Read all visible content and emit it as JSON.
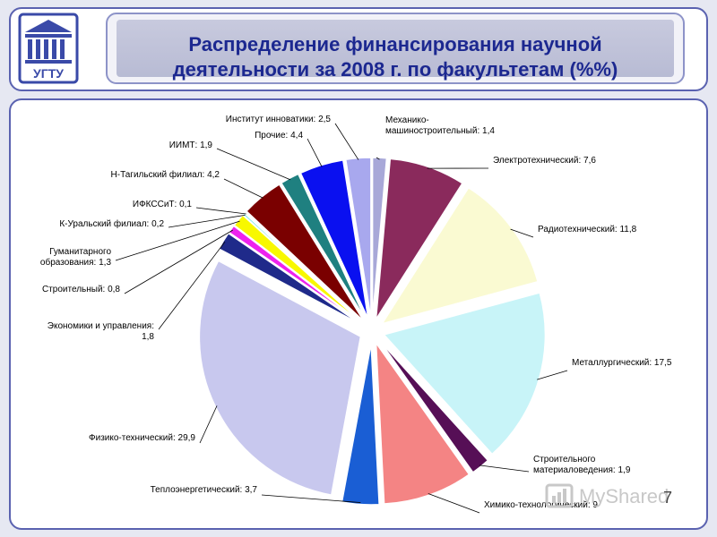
{
  "header": {
    "title_line1": "Распределение финансирования научной",
    "title_line2": "деятельности за 2008 г. по факультетам (%%)",
    "logo_text": "УГТУ"
  },
  "chart_data": {
    "type": "pie",
    "title": "Распределение финансирования научной деятельности за 2008 г. по факультетам (%%)",
    "slices": [
      {
        "label": "Механико-машиностроительный: 1,4",
        "value": 1.4,
        "color": "#a8a8d8"
      },
      {
        "label": "Электротехнический: 7,6",
        "value": 7.6,
        "color": "#8a2a5c"
      },
      {
        "label": "Радиотехнический: 11,8",
        "value": 11.8,
        "color": "#fafad2"
      },
      {
        "label": "Металлургический: 17,5",
        "value": 17.5,
        "color": "#c8f4f8"
      },
      {
        "label": "Строительного материаловедения: 1,9",
        "value": 1.9,
        "color": "#560f56"
      },
      {
        "label": "Химико-технологический: 9",
        "value": 9,
        "color": "#f48484"
      },
      {
        "label": "Теплоэнергетический: 3,7",
        "value": 3.7,
        "color": "#1a5ed4"
      },
      {
        "label": "Физико-технический: 29,9",
        "value": 29.9,
        "color": "#c8c8ee"
      },
      {
        "label": "Экономики и управления: 1,8",
        "value": 1.8,
        "color": "#1f2a8a"
      },
      {
        "label": "Строительный: 0,8",
        "value": 0.8,
        "color": "#ee22ee"
      },
      {
        "label": "Гуманитарного образования: 1,3",
        "value": 1.3,
        "color": "#f8f800"
      },
      {
        "label": "К-Уральский филиал: 0,2",
        "value": 0.2,
        "color": "#40e0e0"
      },
      {
        "label": "ИФКССиТ: 0,1",
        "value": 0.1,
        "color": "#7a0a3a"
      },
      {
        "label": "Н-Тагильский филиал: 4,2",
        "value": 4.2,
        "color": "#7a0000"
      },
      {
        "label": "ИИМТ: 1,9",
        "value": 1.9,
        "color": "#1f8080"
      },
      {
        "label": "Прочие: 4,4",
        "value": 4.4,
        "color": "#0a10f0"
      },
      {
        "label": "Институт инноватики: 2,5",
        "value": 2.5,
        "color": "#a8a8ee"
      }
    ]
  },
  "watermark": {
    "text": "MyShared"
  },
  "page_number": "7"
}
